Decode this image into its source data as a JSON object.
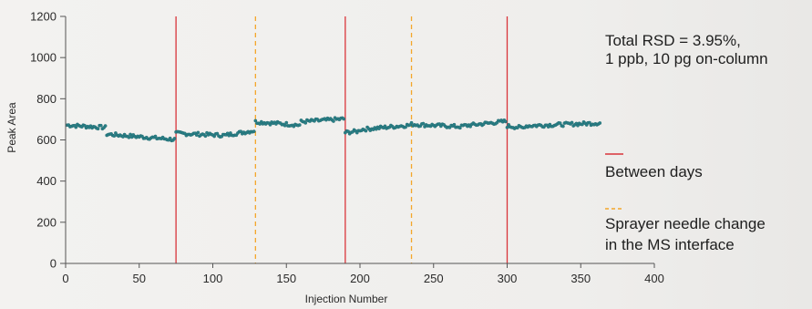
{
  "chart_data": {
    "type": "scatter",
    "xlabel": "Injection Number",
    "ylabel": "Peak Area",
    "xlim": [
      0,
      400
    ],
    "ylim": [
      0,
      1200
    ],
    "xticks": [
      0,
      50,
      100,
      150,
      200,
      250,
      300,
      350,
      400
    ],
    "yticks": [
      0,
      200,
      400,
      600,
      800,
      1000,
      1200
    ],
    "grid": false,
    "series": [
      {
        "name": "",
        "color": "#2a7f86",
        "segments": [
          {
            "x_range": [
              1,
              28
            ],
            "start": 672,
            "end": 660
          },
          {
            "x_range": [
              28,
              75
            ],
            "start": 628,
            "end": 602
          },
          {
            "x_range": [
              75,
              110
            ],
            "start": 632,
            "end": 622
          },
          {
            "x_range": [
              110,
              129
            ],
            "start": 625,
            "end": 645
          },
          {
            "x_range": [
              129,
              160
            ],
            "start": 688,
            "end": 672
          },
          {
            "x_range": [
              160,
              190
            ],
            "start": 688,
            "end": 702
          },
          {
            "x_range": [
              190,
              200
            ],
            "start": 636,
            "end": 642
          },
          {
            "x_range": [
              200,
              235
            ],
            "start": 650,
            "end": 672
          },
          {
            "x_range": [
              235,
              270
            ],
            "start": 676,
            "end": 664
          },
          {
            "x_range": [
              270,
              300
            ],
            "start": 668,
            "end": 690
          },
          {
            "x_range": [
              300,
              312
            ],
            "start": 668,
            "end": 658
          },
          {
            "x_range": [
              312,
              364
            ],
            "start": 668,
            "end": 682
          }
        ]
      }
    ],
    "between_days": [
      75,
      190,
      300
    ],
    "needle_changes": [
      129,
      235
    ],
    "annotations": [
      "Total RSD = 3.95%,",
      "1 ppb, 10 pg on-column"
    ],
    "legend": [
      {
        "label": "Between days",
        "style": "solid",
        "color": "#d9343a"
      },
      {
        "label_lines": [
          "Sprayer needle change",
          "in the MS interface"
        ],
        "style": "dashed",
        "color": "#f4a62a"
      }
    ]
  }
}
